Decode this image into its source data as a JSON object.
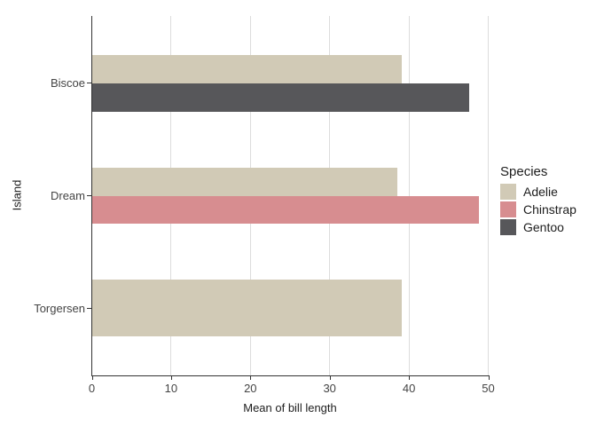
{
  "chart_data": {
    "type": "bar",
    "orientation": "horizontal",
    "xlabel": "Mean of bill length",
    "ylabel": "Island",
    "categories": [
      "Biscoe",
      "Dream",
      "Torgersen"
    ],
    "series": [
      {
        "name": "Adelie",
        "color": "#d1cab6",
        "values": [
          39.0,
          38.5,
          39.0
        ]
      },
      {
        "name": "Chinstrap",
        "color": "#d78d90",
        "values": [
          null,
          48.8,
          null
        ]
      },
      {
        "name": "Gentoo",
        "color": "#57575a",
        "values": [
          47.5,
          null,
          null
        ]
      }
    ],
    "x_ticks": [
      0,
      10,
      20,
      30,
      40,
      50
    ],
    "xlim": [
      0,
      50
    ],
    "legend": {
      "title": "Species",
      "position": "right"
    },
    "grid": {
      "vertical": true,
      "horizontal": false
    },
    "colors": {
      "gridline": "#dcdcdc",
      "axis_line": "#333333",
      "tick_text": "#444444",
      "title_text": "#1d1d1d",
      "background": "#ffffff"
    }
  }
}
